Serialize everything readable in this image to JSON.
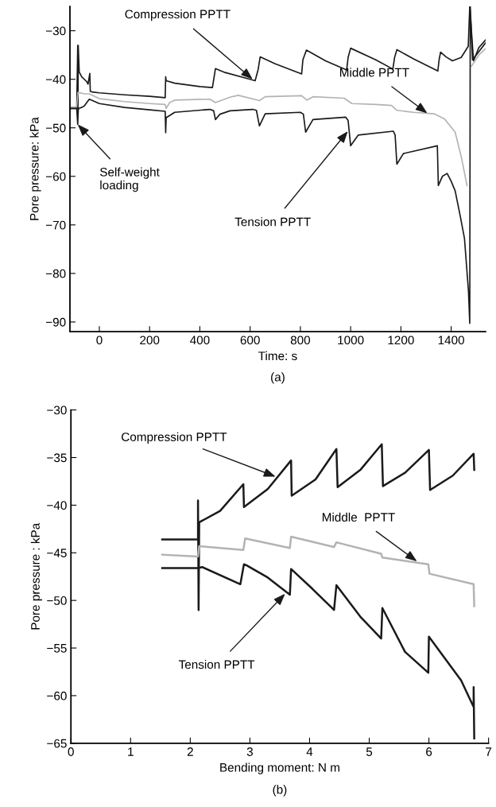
{
  "chart_data": [
    {
      "type": "line",
      "xlabel": "Time: s",
      "ylabel": "Pore pressure: kPa",
      "xlim": [
        -117,
        1537
      ],
      "ylim": [
        -92,
        -25
      ],
      "xticks": [
        0,
        200,
        400,
        600,
        800,
        1000,
        1200,
        1400
      ],
      "yticks": [
        -90,
        -80,
        -70,
        -60,
        -50,
        -40,
        -30
      ],
      "grid": false,
      "legend": false,
      "series": [
        {
          "color": "#1a1a1a",
          "x": [
            -117,
            -90,
            -86,
            -85,
            -84,
            -80,
            -70,
            -50,
            -45,
            -38,
            -36,
            -34,
            -30,
            0,
            100,
            200,
            262,
            264,
            266,
            300,
            400,
            450,
            462,
            500,
            600,
            620,
            632,
            640,
            700,
            805,
            810,
            824,
            900,
            984,
            990,
            1000,
            1100,
            1168,
            1175,
            1184,
            1250,
            1347,
            1352,
            1358,
            1380,
            1405,
            1440,
            1468,
            1474,
            1489,
            1510,
            1537
          ],
          "values": [
            -46.0,
            -46.0,
            -33.0,
            -47.0,
            -33.0,
            -38.5,
            -39.5,
            -40.5,
            -41.0,
            -38.8,
            -42.5,
            -42.5,
            -42.6,
            -42.8,
            -43.2,
            -43.5,
            -43.8,
            -39.5,
            -40.3,
            -40.8,
            -41.5,
            -41.7,
            -37.8,
            -38.6,
            -40.0,
            -40.3,
            -38.0,
            -35.4,
            -36.8,
            -38.9,
            -36.0,
            -34.0,
            -36.2,
            -38.1,
            -35.5,
            -33.6,
            -36.0,
            -37.9,
            -35.5,
            -33.9,
            -35.8,
            -38.3,
            -36.0,
            -34.4,
            -35.4,
            -36.2,
            -35.5,
            -33.2,
            -25.0,
            -36.2,
            -33.5,
            -31.9
          ]
        },
        {
          "color": "#b3b3b3",
          "x": [
            -117,
            -90,
            -85,
            -60,
            -40,
            0,
            100,
            200,
            262,
            266,
            280,
            300,
            440,
            462,
            520,
            553,
            637,
            660,
            805,
            826,
            850,
            974,
            1005,
            1100,
            1163,
            1184,
            1250,
            1332,
            1374,
            1416,
            1442,
            1463,
            1474,
            1481,
            1510,
            1537
          ],
          "values": [
            -45.7,
            -45.7,
            -42.7,
            -43.0,
            -43.0,
            -44.0,
            -44.6,
            -45.0,
            -45.2,
            -46.0,
            -44.8,
            -44.3,
            -44.1,
            -44.8,
            -43.7,
            -43.3,
            -44.4,
            -43.6,
            -43.4,
            -44.3,
            -43.6,
            -43.9,
            -45.0,
            -45.2,
            -45.4,
            -46.4,
            -46.8,
            -47.1,
            -48.2,
            -50.9,
            -56.4,
            -61.9,
            null,
            -37.3,
            -35.0,
            -33.7
          ]
        },
        {
          "color": "#1a1a1a",
          "x": [
            -117,
            -90,
            -86,
            -84,
            -82,
            -70,
            -60,
            -40,
            0,
            100,
            200,
            262,
            264,
            266,
            270,
            300,
            440,
            455,
            462,
            480,
            520,
            610,
            625,
            637,
            660,
            800,
            812,
            821,
            850,
            980,
            990,
            1000,
            1030,
            1170,
            1177,
            1184,
            1210,
            1345,
            1349,
            1365,
            1384,
            1400,
            1416,
            1437,
            1453,
            1469,
            1474,
            1476,
            1485,
            1537
          ],
          "values": [
            -46.0,
            -46.0,
            -49.3,
            -46.5,
            -46.0,
            -45.8,
            -45.5,
            -44.1,
            -45.0,
            -45.8,
            -46.3,
            -46.6,
            -51.0,
            -47.8,
            -47.8,
            -46.8,
            -46.2,
            -46.5,
            -48.3,
            -47.2,
            -46.5,
            -46.2,
            -46.4,
            -49.6,
            -47.1,
            -46.8,
            -47.2,
            -50.9,
            -48.3,
            -47.8,
            -48.5,
            -53.7,
            -51.5,
            -50.7,
            -51.5,
            -57.5,
            -55.3,
            -53.7,
            -61.9,
            -60.0,
            -59.4,
            -61.0,
            -63.0,
            -68.4,
            -72.8,
            -83.7,
            -90.3,
            -25.0,
            -36.0,
            -32.5
          ]
        }
      ],
      "annotations": [
        {
          "text": "Compression PPTT",
          "x": 610,
          "y": -40.0
        },
        {
          "text": "Middle PPTT",
          "x": 1305,
          "y": -47.0
        },
        {
          "text": "Tension PPTT",
          "x": 989,
          "y": -50.7
        },
        {
          "text": "Self-weight\nloading",
          "x": -86,
          "y": -49.3
        },
        "(a)"
      ]
    },
    {
      "type": "line",
      "xlabel": "Bending moment: N m",
      "ylabel": "Pore pressure : kPa",
      "xlim": [
        0,
        7
      ],
      "ylim": [
        -65,
        -30
      ],
      "xticks": [
        0,
        1,
        2,
        3,
        4,
        5,
        6,
        7
      ],
      "yticks": [
        -65,
        -60,
        -55,
        -50,
        -45,
        -40,
        -35,
        -30
      ],
      "grid": false,
      "legend": false,
      "series": [
        {
          "color": "#1a1a1a",
          "x": [
            1.53,
            2.13,
            2.13,
            2.14,
            2.15,
            2.5,
            2.89,
            2.9,
            3.3,
            3.69,
            3.7,
            4.1,
            4.45,
            4.47,
            4.85,
            5.21,
            5.23,
            5.6,
            6.0,
            6.02,
            6.4,
            6.75,
            6.76
          ],
          "values": [
            -43.6,
            -43.6,
            -39.5,
            -51.0,
            -41.8,
            -40.6,
            -37.8,
            -40.2,
            -38.3,
            -35.3,
            -39.0,
            -37.3,
            -34.1,
            -38.1,
            -36.3,
            -33.6,
            -38.0,
            -36.6,
            -34.2,
            -38.4,
            -36.9,
            -34.6,
            -36.3
          ]
        },
        {
          "color": "#b3b3b3",
          "x": [
            1.53,
            2.13,
            2.15,
            2.89,
            2.92,
            3.67,
            3.69,
            4.41,
            4.45,
            5.2,
            5.22,
            5.99,
            6.01,
            6.75,
            6.76
          ],
          "values": [
            -45.2,
            -45.4,
            -44.3,
            -44.7,
            -43.5,
            -44.5,
            -43.3,
            -44.4,
            -43.9,
            -45.1,
            -45.5,
            -46.2,
            -47.2,
            -48.3,
            -50.6
          ]
        },
        {
          "color": "#1a1a1a",
          "x": [
            1.53,
            2.13,
            2.2,
            2.84,
            2.9,
            2.94,
            3.3,
            3.67,
            3.69,
            4.05,
            4.41,
            4.45,
            4.85,
            5.2,
            5.22,
            5.6,
            5.99,
            6.0,
            6.54,
            6.75,
            6.75,
            6.76
          ],
          "values": [
            -46.6,
            -46.6,
            -46.5,
            -48.3,
            -46.2,
            -46.3,
            -47.6,
            -49.4,
            -46.7,
            -48.8,
            -51.0,
            -48.4,
            -51.7,
            -54.0,
            -50.8,
            -55.4,
            -57.6,
            -53.8,
            -58.4,
            -61.2,
            -59.1,
            -64.5
          ]
        }
      ],
      "annotations": [
        {
          "text": "Compression PPTT",
          "x": 3.43,
          "y": -37.0
        },
        {
          "text": "Middle  PPTT",
          "x": 5.8,
          "y": -45.9
        },
        {
          "text": "Tension PPTT",
          "x": 3.59,
          "y": -49.3
        },
        "(b)"
      ]
    }
  ]
}
